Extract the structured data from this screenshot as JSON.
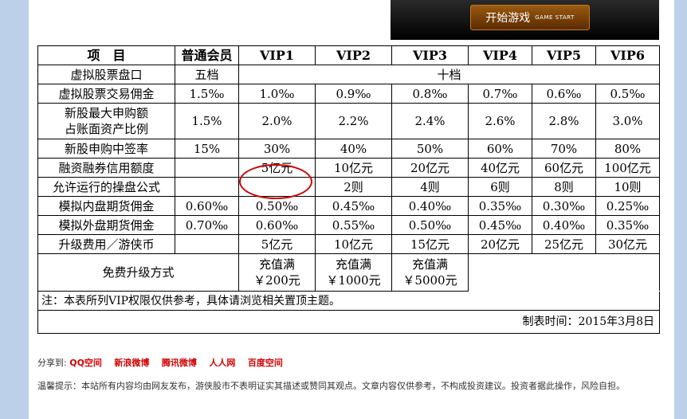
{
  "banner": {
    "label": "开始游戏",
    "sublabel": "GAME START"
  },
  "table": {
    "headers": [
      "项　目",
      "普通会员",
      "VIP1",
      "VIP2",
      "VIP3",
      "VIP4",
      "VIP5",
      "VIP6"
    ],
    "rows": {
      "market": {
        "label": "虚拟股票盘口",
        "basic": "五档",
        "vip": "十档"
      },
      "commission": {
        "label": "虚拟股票交易佣金",
        "values": [
          "1.5‰",
          "1.0‰",
          "0.9‰",
          "0.8‰",
          "0.7‰",
          "0.6‰",
          "0.5‰"
        ]
      },
      "ipo_ratio": {
        "label_line1": "新股最大申购额",
        "label_line2": "占账面资产比例",
        "values": [
          "1.5%",
          "2.0%",
          "2.2%",
          "2.4%",
          "2.6%",
          "2.8%",
          "3.0%"
        ]
      },
      "ipo_win": {
        "label": "新股申购中签率",
        "values": [
          "15%",
          "30%",
          "40%",
          "50%",
          "60%",
          "70%",
          "80%"
        ]
      },
      "credit": {
        "label": "融资融券信用额度",
        "values": [
          "",
          "5亿元",
          "10亿元",
          "20亿元",
          "40亿元",
          "60亿元",
          "100亿元"
        ]
      },
      "formula": {
        "label": "允许运行的操盘公式",
        "values": [
          "",
          "",
          "2则",
          "4则",
          "6则",
          "8则",
          "10则"
        ]
      },
      "inner_fut": {
        "label": "模拟内盘期货佣金",
        "values": [
          "0.60‰",
          "0.50‰",
          "0.45‰",
          "0.40‰",
          "0.35‰",
          "0.30‰",
          "0.25‰"
        ]
      },
      "outer_fut": {
        "label": "模拟外盘期货佣金",
        "values": [
          "0.70‰",
          "0.60‰",
          "0.55‰",
          "0.50‰",
          "0.45‰",
          "0.40‰",
          "0.35‰"
        ]
      },
      "upgrade_fee": {
        "label": "升级费用／游侠币",
        "values": [
          "",
          "5亿元",
          "10亿元",
          "15亿元",
          "20亿元",
          "25亿元",
          "30亿元"
        ]
      },
      "free_upgrade": {
        "label": "免费升级方式",
        "cells": [
          {
            "line1": "充值满",
            "line2": "￥200元"
          },
          {
            "line1": "充值满",
            "line2": "￥1000元"
          },
          {
            "line1": "充值满",
            "line2": "￥5000元"
          }
        ]
      }
    },
    "note": "注：本表所列VIP权限仅供参考，具体请浏览相关置顶主题。",
    "date": "制表时间：2015年3月8日"
  },
  "share": {
    "label": "分享到:",
    "links": [
      "QQ空间",
      "新浪微博",
      "腾讯微博",
      "人人网",
      "百度空间"
    ]
  },
  "tip": "温馨提示：本站所有内容均由网友发布，游侠股市不表明证实其描述或赞同其观点。文章内容仅供参考，不构成投资建议。投资者据此操作，风险自担。",
  "colors": {
    "sidebar": "#bcd0ea",
    "share_link": "#d00000",
    "highlight_circle": "#d00000"
  }
}
